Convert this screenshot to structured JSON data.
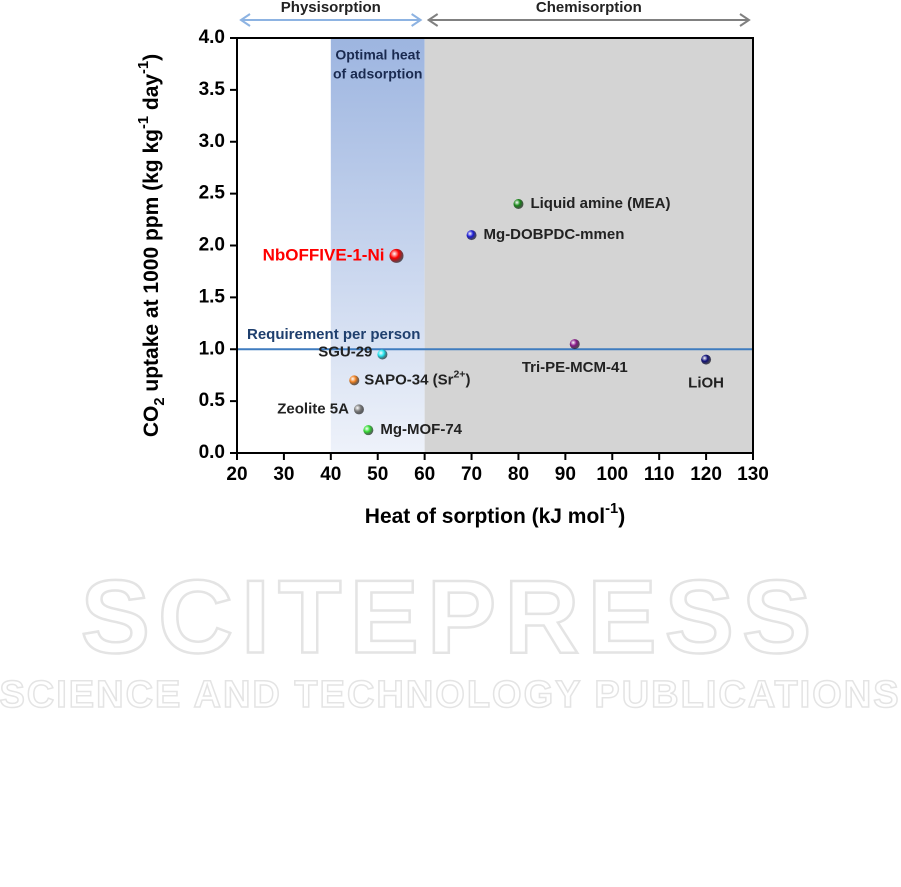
{
  "chart_data": {
    "type": "scatter",
    "x_label": [
      "Heat of sorption (kJ mol",
      "-1",
      ")"
    ],
    "y_label": [
      "CO",
      "2",
      " uptake at 1000 ppm (kg kg",
      "-1",
      " day",
      "-1",
      ")"
    ],
    "xlim": [
      20,
      130
    ],
    "xticks": [
      20,
      30,
      40,
      50,
      60,
      70,
      80,
      90,
      100,
      110,
      120,
      130
    ],
    "ylim": [
      0,
      4
    ],
    "yticks": [
      {
        "value": 0,
        "label": "0.0"
      },
      0.5,
      {
        "value": 1,
        "label": "1.0"
      },
      1.5,
      {
        "value": 2,
        "label": "2.0"
      },
      2.5,
      {
        "value": 3,
        "label": "3.0"
      },
      3.5,
      {
        "value": 4,
        "label": "4.0"
      }
    ],
    "shaded_regions": [
      {
        "x": [
          40,
          60
        ],
        "color": "#9db5e0",
        "label": [
          "Optimal heat",
          "of adsorption"
        ]
      },
      {
        "x": [
          60,
          130
        ],
        "color": "#d4d4d4"
      }
    ],
    "range_arrows": [
      {
        "label": "Physisorption",
        "x": [
          20,
          60
        ],
        "color": "#8db3e2"
      },
      {
        "label": "Chemisorption",
        "x": [
          60,
          130
        ],
        "color": "#808080"
      }
    ],
    "reference_line": {
      "label": "Requirement per person",
      "y": 1,
      "color": "#3f7cbf"
    },
    "series": [
      {
        "name": "NbOFFIVE-1-Ni",
        "color": "#ff0000",
        "x": [
          54
        ],
        "values": [
          1.9
        ]
      },
      {
        "name": "Liquid amine (MEA)",
        "color": "#1a8a1a",
        "x": [
          80
        ],
        "values": [
          2.4
        ]
      },
      {
        "name": "Mg-DOBPDC-mmen",
        "color": "#1d1dd6",
        "x": [
          70
        ],
        "values": [
          2.1
        ]
      },
      {
        "name": "Tri-PE-MCM-41",
        "color": "#8a1a8a",
        "x": [
          92
        ],
        "values": [
          1.05
        ]
      },
      {
        "name": "LiOH",
        "color": "#10107a",
        "x": [
          120
        ],
        "values": [
          0.9
        ]
      },
      {
        "name": "SGU-29",
        "color": "#22e5f0",
        "x": [
          51
        ],
        "values": [
          0.95
        ]
      },
      {
        "name": [
          "SAPO-34 (Sr",
          "2+",
          ")"
        ],
        "color": "#f08020",
        "x": [
          45
        ],
        "values": [
          0.7
        ]
      },
      {
        "name": "Zeolite 5A",
        "color": "#808080",
        "x": [
          46
        ],
        "values": [
          0.42
        ]
      },
      {
        "name": "Mg-MOF-74",
        "color": "#33dd33",
        "x": [
          48
        ],
        "values": [
          0.22
        ]
      }
    ],
    "watermark": [
      "SCITEPRESS",
      "SCIENCE AND TECHNOLOGY PUBLICATIONS"
    ]
  }
}
